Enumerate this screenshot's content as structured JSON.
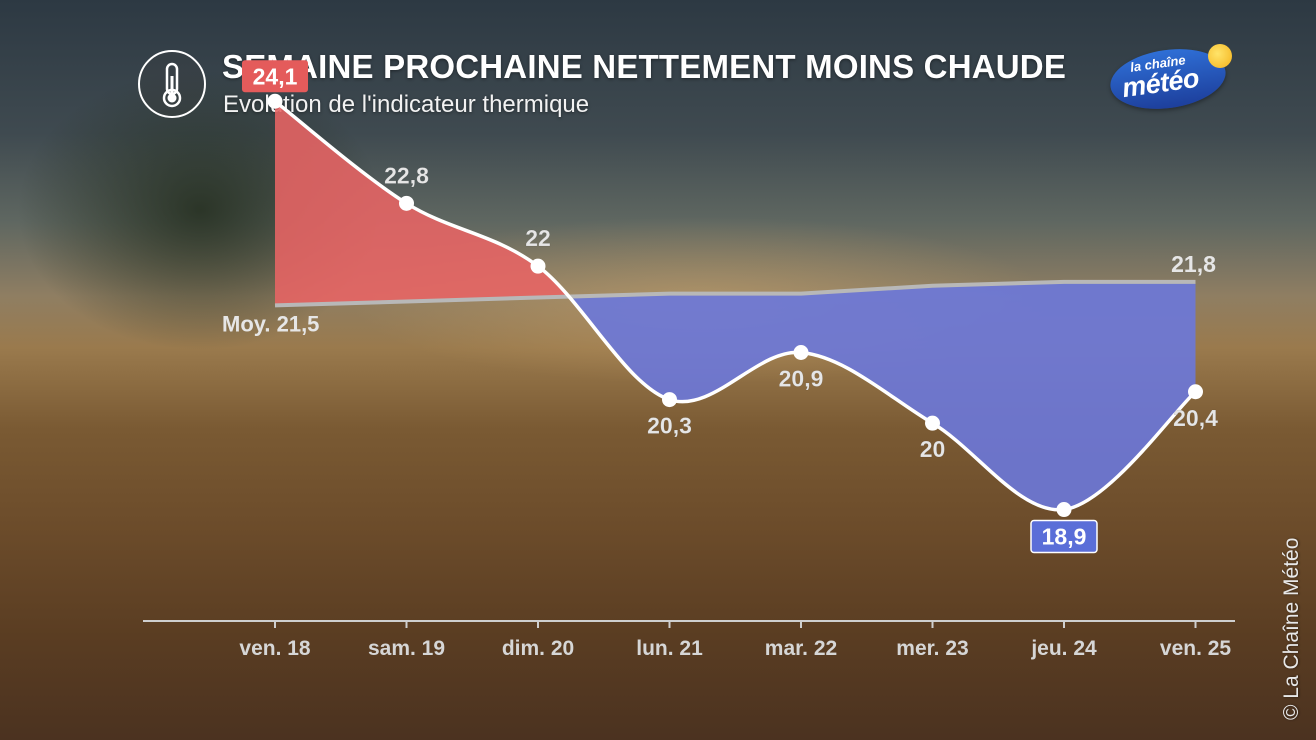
{
  "header": {
    "title": "SEMAINE PROCHAINE NETTEMENT MOINS CHAUDE",
    "subtitle": "Evolution de l'indicateur thermique",
    "icon": "thermometer-icon"
  },
  "logo": {
    "line1": "la chaîne",
    "line2": "météo"
  },
  "copyright": "© La Chaîne Météo",
  "colors": {
    "above": "#e86464",
    "below": "#6b78da",
    "normal_line": "#b8b8b8",
    "point": "#ffffff",
    "max_badge": "#e45b5b",
    "min_badge": "#5a6ed8"
  },
  "chart_data": {
    "type": "area",
    "categories": [
      "ven. 18",
      "sam. 19",
      "dim. 20",
      "lun. 21",
      "mar. 22",
      "mer. 23",
      "jeu. 24",
      "ven. 25"
    ],
    "series": [
      {
        "values": [
          24.1,
          22.8,
          22,
          20.3,
          20.9,
          20,
          18.9,
          20.4
        ]
      },
      {
        "values": [
          21.5,
          21.55,
          21.6,
          21.65,
          21.65,
          21.75,
          21.8,
          21.8
        ]
      }
    ],
    "value_labels": [
      "24,1",
      "22,8",
      "22",
      "20,3",
      "20,9",
      "20",
      "18,9",
      "20,4"
    ],
    "normal_labels": {
      "start": "Moy. 21,5",
      "end": "21,8"
    },
    "highlight": {
      "max_index": 0,
      "min_index": 6
    },
    "ylim": [
      17.2,
      24.6
    ],
    "grid": false
  }
}
